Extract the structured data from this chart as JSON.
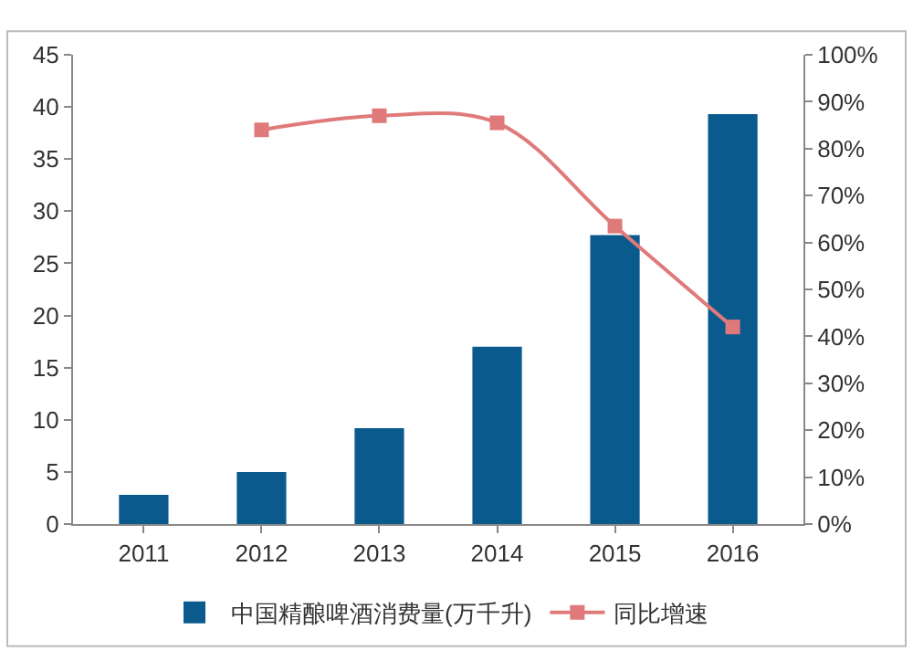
{
  "chart_data": {
    "type": "bar",
    "categories": [
      "2011",
      "2012",
      "2013",
      "2014",
      "2015",
      "2016"
    ],
    "series": [
      {
        "name": "中国精酿啤酒消费量(万千升)",
        "color": "#0b5a8e",
        "values": [
          2.8,
          5.0,
          9.2,
          17,
          27.7,
          39.3
        ]
      },
      {
        "name": "同比增速",
        "type": "line",
        "axis": "y2",
        "color": "#e07a7a",
        "marker": "square",
        "values": [
          null,
          84,
          87,
          85.5,
          63.5,
          42
        ]
      }
    ],
    "ylim": [
      0,
      45
    ],
    "yticks": [
      0,
      5,
      10,
      15,
      20,
      25,
      30,
      35,
      40,
      45
    ],
    "y2lim": [
      0,
      100
    ],
    "y2ticks": [
      {
        "value": 0,
        "label": "0%"
      },
      {
        "value": 10,
        "label": "10%"
      },
      {
        "value": 20,
        "label": "20%"
      },
      {
        "value": 30,
        "label": "30%"
      },
      {
        "value": 40,
        "label": "40%"
      },
      {
        "value": 50,
        "label": "50%"
      },
      {
        "value": 60,
        "label": "60%"
      },
      {
        "value": 70,
        "label": "70%"
      },
      {
        "value": 80,
        "label": "80%"
      },
      {
        "value": 90,
        "label": "90%"
      },
      {
        "value": 100,
        "label": "100%"
      }
    ],
    "grid": false,
    "legend": "bottom"
  }
}
